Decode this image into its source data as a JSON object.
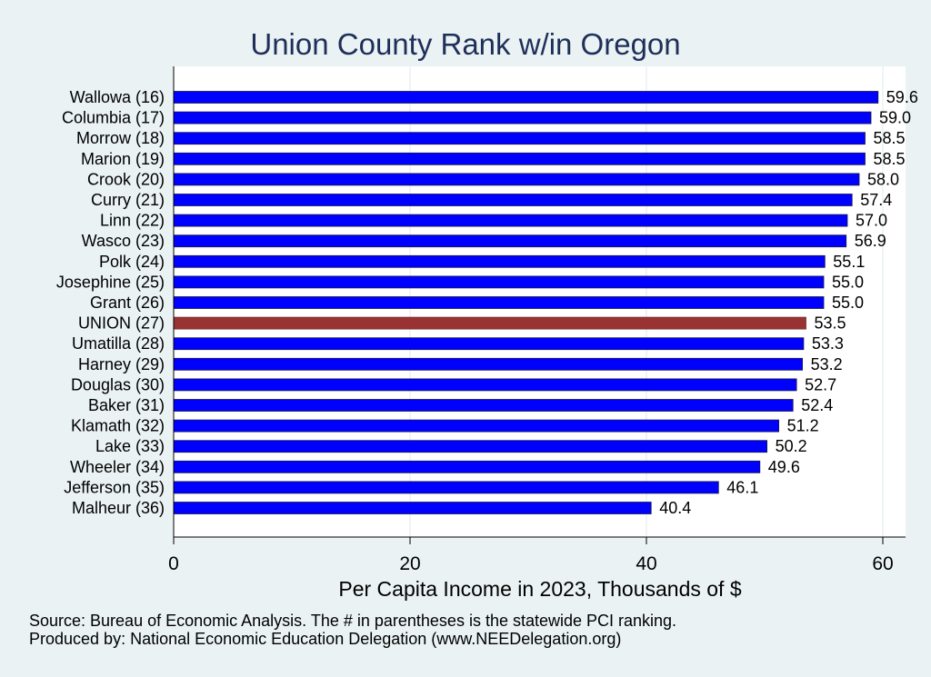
{
  "chart_data": {
    "type": "bar",
    "orientation": "horizontal",
    "title": "Union County Rank w/in Oregon",
    "xlabel": "Per Capita Income in 2023, Thousands of $",
    "ylabel": "",
    "xlim": [
      0,
      62
    ],
    "xticks": [
      0,
      20,
      40,
      60
    ],
    "grid": true,
    "categories": [
      "Wallowa (16)",
      "Columbia (17)",
      "Morrow (18)",
      "Marion (19)",
      "Crook (20)",
      "Curry (21)",
      "Linn (22)",
      "Wasco (23)",
      "Polk (24)",
      "Josephine (25)",
      "Grant (26)",
      "UNION (27)",
      "Umatilla (28)",
      "Harney (29)",
      "Douglas (30)",
      "Baker (31)",
      "Klamath (32)",
      "Lake (33)",
      "Wheeler (34)",
      "Jefferson (35)",
      "Malheur (36)"
    ],
    "values": [
      59.6,
      59.0,
      58.5,
      58.5,
      58.0,
      57.4,
      57.0,
      56.9,
      55.1,
      55.0,
      55.0,
      53.5,
      53.3,
      53.2,
      52.7,
      52.4,
      51.2,
      50.2,
      49.6,
      46.1,
      40.4
    ],
    "value_labels": [
      "59.6",
      "59.0",
      "58.5",
      "58.5",
      "58.0",
      "57.4",
      "57.0",
      "56.9",
      "55.1",
      "55.0",
      "55.0",
      "53.5",
      "53.3",
      "53.2",
      "52.7",
      "52.4",
      "51.2",
      "50.2",
      "49.6",
      "46.1",
      "40.4"
    ],
    "highlight": "UNION (27)",
    "colors": {
      "bar": "#0000ff",
      "highlight": "#993333",
      "plot_bg": "#ffffff",
      "page_bg": "#eaf2f3",
      "title": "#1e2f5a"
    }
  },
  "notes": {
    "source": "Source: Bureau of Economic Analysis. The # in parentheses is the statewide PCI ranking.",
    "produced": "Produced by: National Economic Education Delegation (www.NEEDelegation.org)"
  }
}
